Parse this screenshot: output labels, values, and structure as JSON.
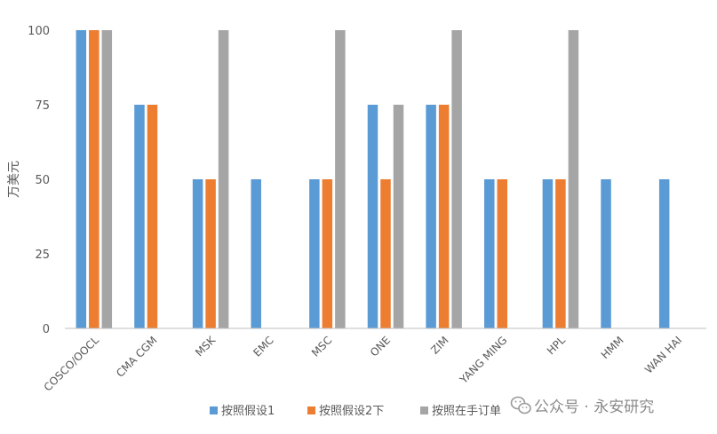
{
  "chart_data": {
    "type": "bar",
    "ylabel": "万美元",
    "ylim": [
      0,
      100
    ],
    "yticks": [
      0,
      25,
      50,
      75,
      100
    ],
    "categories": [
      "COSCO/OOCL",
      "CMA CGM",
      "MSK",
      "EMC",
      "MSC",
      "ONE",
      "ZIM",
      "YANG MING",
      "HPL",
      "HMM",
      "WAN HAI"
    ],
    "series": [
      {
        "name": "按照假设1",
        "color": "#5B9BD5",
        "values": [
          100,
          75,
          50,
          50,
          50,
          75,
          75,
          50,
          50,
          50,
          50
        ]
      },
      {
        "name": "按照假设2下",
        "color": "#ED7D31",
        "values": [
          100,
          75,
          50,
          null,
          50,
          50,
          75,
          50,
          50,
          null,
          null
        ]
      },
      {
        "name": "按照在手订单",
        "color": "#A5A5A5",
        "values": [
          100,
          null,
          100,
          null,
          100,
          75,
          100,
          null,
          100,
          null,
          null
        ]
      }
    ],
    "legend_position": "bottom",
    "grid": false
  },
  "watermark": {
    "text": "公众号 · 永安研究",
    "icon": "wechat-icon"
  }
}
